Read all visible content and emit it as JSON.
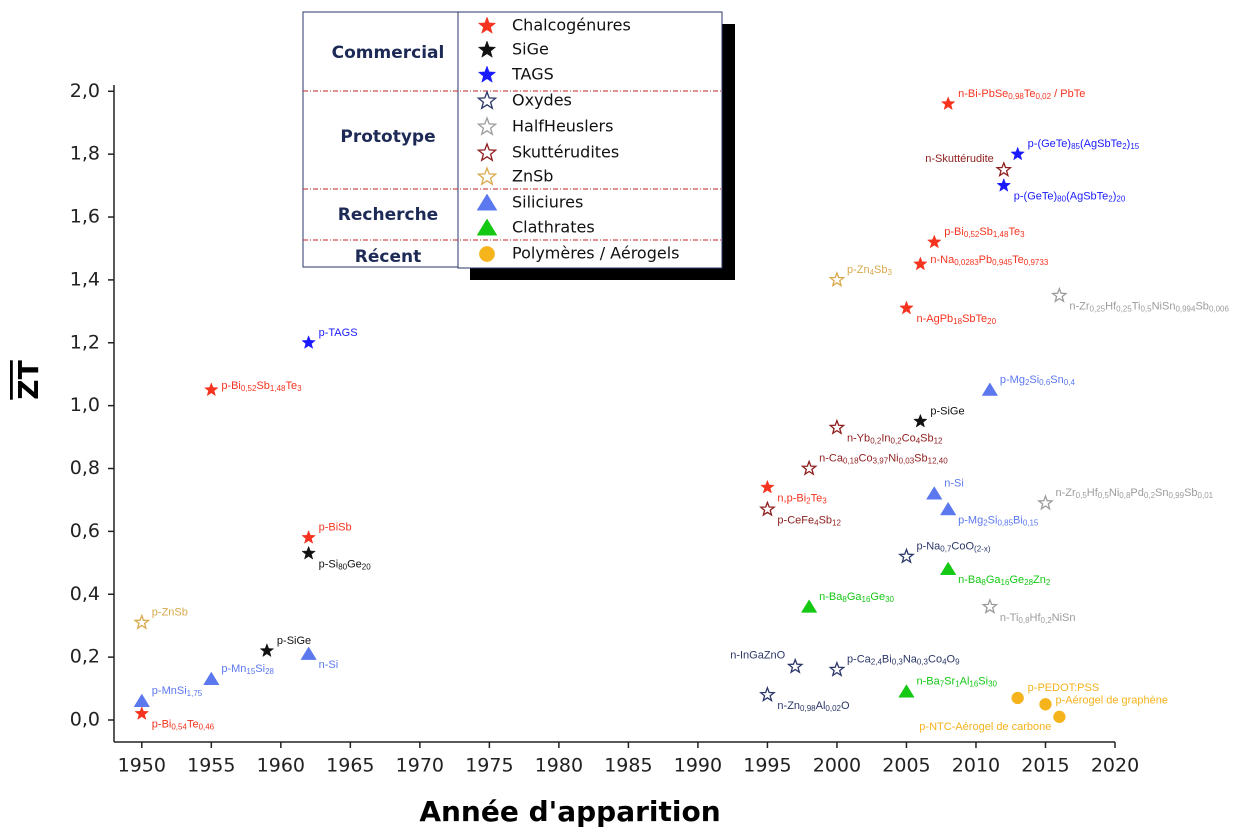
{
  "chart_data": {
    "type": "scatter",
    "x_label": "Année d'apparition",
    "y_label": "ZT",
    "xlim": [
      1948,
      2020
    ],
    "ylim": [
      -0.07,
      2.02
    ],
    "xticks": [
      1950,
      1955,
      1960,
      1965,
      1970,
      1975,
      1980,
      1985,
      1990,
      1995,
      2000,
      2005,
      2010,
      2015,
      2020
    ],
    "yticks": [
      {
        "value": 0,
        "label": "0,0"
      },
      {
        "value": 0.2,
        "label": "0,2"
      },
      {
        "value": 0.4,
        "label": "0,4"
      },
      {
        "value": 0.6,
        "label": "0,6"
      },
      {
        "value": 0.8,
        "label": "0,8"
      },
      {
        "value": 1,
        "label": "1,0"
      },
      {
        "value": 1.2,
        "label": "1,2"
      },
      {
        "value": 1.4,
        "label": "1,4"
      },
      {
        "value": 1.6,
        "label": "1,6"
      },
      {
        "value": 1.8,
        "label": "1,8"
      },
      {
        "value": 2,
        "label": "2,0"
      }
    ],
    "legend_groups": [
      "Commercial",
      "Prototype",
      "Recherche",
      "Récent"
    ],
    "series": [
      {
        "name": "Chalcogénures",
        "color": "#f5331f",
        "marker": "star",
        "filled": true,
        "x": [
          1950,
          1955,
          1962,
          1995,
          2005,
          2006,
          2007,
          2008
        ],
        "values": [
          0.02,
          1.05,
          0.58,
          0.74,
          1.31,
          1.45,
          1.52,
          1.96
        ],
        "labels": [
          [
            "p-Bi",
            "0,54",
            "Te",
            "0,46"
          ],
          [
            "p-Bi",
            "0,52",
            "Sb",
            "1,48",
            "Te",
            "3"
          ],
          [
            "p-BiSb"
          ],
          [
            "n,p-Bi",
            "2",
            "Te",
            "3"
          ],
          [
            "n-AgPb",
            "18",
            "SbTe",
            "20"
          ],
          [
            "n-Na",
            "0,0283",
            "Pb",
            "0,945",
            "Te",
            "0,9733"
          ],
          [
            "p-Bi",
            "0,52",
            "Sb",
            "1,48",
            "Te",
            "3"
          ],
          [
            "n-Bi-PbSe",
            "0,98",
            "Te",
            "0,02",
            " / PbTe"
          ]
        ]
      },
      {
        "name": "SiGe",
        "color": "#111111",
        "marker": "star",
        "filled": true,
        "x": [
          1959,
          1962,
          2006
        ],
        "values": [
          0.22,
          0.53,
          0.95
        ],
        "labels": [
          [
            "p-SiGe"
          ],
          [
            "p-Si",
            "80",
            "Ge",
            "20"
          ],
          [
            "p-SiGe"
          ]
        ]
      },
      {
        "name": "TAGS",
        "color": "#1a1aff",
        "marker": "star",
        "filled": true,
        "x": [
          1962,
          2013,
          2012
        ],
        "values": [
          1.2,
          1.8,
          1.7
        ],
        "labels": [
          [
            "p-TAGS"
          ],
          [
            "p-(GeTe)",
            "85",
            "(AgSbTe",
            "2",
            ")",
            "15"
          ],
          [
            "p-(GeTe)",
            "80",
            "(AgSbTe",
            "2",
            ")",
            "20"
          ]
        ]
      },
      {
        "name": "Oxydes",
        "color": "#2b3768",
        "marker": "star",
        "filled": false,
        "x": [
          2005,
          1997,
          2000,
          1995
        ],
        "values": [
          0.52,
          0.17,
          0.16,
          0.08
        ],
        "labels": [
          [
            "p-Na",
            "0,7",
            "CoO",
            "(2-x)"
          ],
          [
            "n-InGaZnO"
          ],
          [
            "p-Ca",
            "2,4",
            "Bi",
            "0,3",
            "Na",
            "0,3",
            "Co",
            "4",
            "O",
            "9"
          ],
          [
            "n-Zn",
            "0,98",
            "Al",
            "0,02",
            "O"
          ]
        ]
      },
      {
        "name": "HalfHeuslers",
        "color": "#9c9c9c",
        "marker": "star",
        "filled": false,
        "x": [
          2016,
          2015,
          2011
        ],
        "values": [
          1.35,
          0.69,
          0.36
        ],
        "labels": [
          [
            "n-Zr",
            "0,25",
            "Hf",
            "0,25",
            "Ti",
            "0,5",
            "NiSn",
            "0,994",
            "Sb",
            "0,006"
          ],
          [
            "n-Zr",
            "0,5",
            "Hf",
            "0,5",
            "Ni",
            "0,8",
            "Pd",
            "0,2",
            "Sn",
            "0,99",
            "Sb",
            "0,01"
          ],
          [
            "n-Ti",
            "0,8",
            "Hf",
            "0,2",
            "NiSn"
          ]
        ]
      },
      {
        "name": "Skuttérudites",
        "color": "#8e1d1d",
        "marker": "star",
        "filled": false,
        "x": [
          2012,
          2000,
          1998,
          1995
        ],
        "values": [
          1.75,
          0.93,
          0.8,
          0.67
        ],
        "labels": [
          [
            "n-Skuttérudite"
          ],
          [
            "n-Yb",
            "0,2",
            "In",
            "0,2",
            "Co",
            "4",
            "Sb",
            "12"
          ],
          [
            "n-Ca",
            "0,18",
            "Co",
            "3,97",
            "Ni",
            "0,03",
            "Sb",
            "12,40"
          ],
          [
            "p-CeFe",
            "4",
            "Sb",
            "12"
          ]
        ]
      },
      {
        "name": "ZnSb",
        "color": "#d9a94c",
        "marker": "star",
        "filled": false,
        "x": [
          1950,
          2000
        ],
        "values": [
          0.31,
          1.4
        ],
        "labels": [
          [
            "p-ZnSb"
          ],
          [
            "p-Zn",
            "4",
            "Sb",
            "3"
          ]
        ]
      },
      {
        "name": "Siliciures",
        "color": "#5b78ef",
        "marker": "triangle",
        "filled": true,
        "x": [
          1950,
          1955,
          1962,
          2007,
          2008,
          2011
        ],
        "values": [
          0.06,
          0.13,
          0.21,
          0.72,
          0.67,
          1.05
        ],
        "labels": [
          [
            "p-MnSi",
            "1,75"
          ],
          [
            "p-Mn",
            "15",
            "Si",
            "28"
          ],
          [
            "n-Si"
          ],
          [
            "n-Si"
          ],
          [
            "p-Mg",
            "2",
            "Si",
            "0,85",
            "Bi",
            "0,15"
          ],
          [
            "p-Mg",
            "2",
            "Si",
            "0,6",
            "Sn",
            "0,4"
          ]
        ]
      },
      {
        "name": "Clathrates",
        "color": "#14c814",
        "marker": "triangle",
        "filled": true,
        "x": [
          1998,
          2008,
          2005
        ],
        "values": [
          0.36,
          0.48,
          0.09
        ],
        "labels": [
          [
            "n-Ba",
            "8",
            "Ga",
            "16",
            "Ge",
            "30"
          ],
          [
            "n-Ba",
            "8",
            "Ga",
            "16",
            "Ge",
            "28",
            "Zn",
            "2"
          ],
          [
            "n-Ba",
            "7",
            "Sr",
            "1",
            "Al",
            "16",
            "Si",
            "30"
          ]
        ]
      },
      {
        "name": "Polymères / Aérogels",
        "color": "#f5b31c",
        "marker": "circle",
        "filled": true,
        "x": [
          2013,
          2015,
          2016
        ],
        "values": [
          0.07,
          0.05,
          0.01
        ],
        "labels": [
          [
            "p-PEDOT:PSS"
          ],
          [
            "p-Aérogel de graphène"
          ],
          [
            "p-NTC-Aérogel de carbone"
          ]
        ]
      }
    ]
  }
}
